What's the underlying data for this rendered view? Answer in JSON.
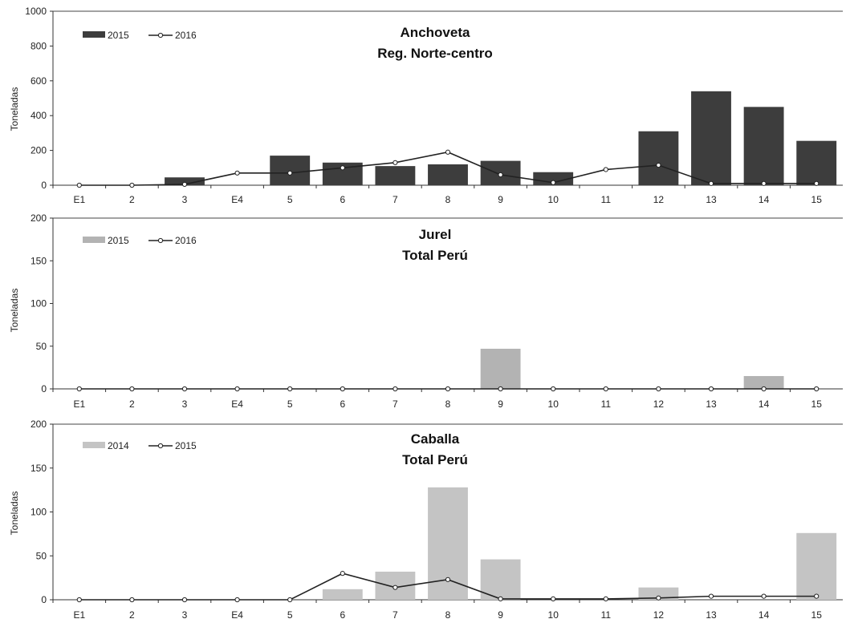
{
  "chart_data": [
    {
      "type": "bar",
      "title": "Anchoveta",
      "subtitle": "Reg. Norte-centro",
      "ylabel": "Toneladas",
      "ylim": [
        0,
        1000
      ],
      "yticks": [
        0,
        200,
        400,
        600,
        800,
        1000
      ],
      "categories": [
        "E1",
        "2",
        "3",
        "E4",
        "5",
        "6",
        "7",
        "8",
        "9",
        "10",
        "11",
        "12",
        "13",
        "14",
        "15"
      ],
      "legend_position": "top-left",
      "series": [
        {
          "name": "2015",
          "kind": "bar",
          "color": "#3d3d3d",
          "values": [
            0,
            0,
            45,
            0,
            170,
            130,
            110,
            120,
            140,
            75,
            0,
            310,
            540,
            450,
            255
          ]
        },
        {
          "name": "2016",
          "kind": "line",
          "color": "#222222",
          "values": [
            0,
            0,
            5,
            70,
            70,
            100,
            130,
            190,
            60,
            15,
            90,
            115,
            10,
            10,
            10
          ]
        }
      ]
    },
    {
      "type": "bar",
      "title": "Jurel",
      "subtitle": "Total Perú",
      "ylabel": "Toneladas",
      "ylim": [
        0,
        200
      ],
      "yticks": [
        0,
        50,
        100,
        150,
        200
      ],
      "categories": [
        "E1",
        "2",
        "3",
        "E4",
        "5",
        "6",
        "7",
        "8",
        "9",
        "10",
        "11",
        "12",
        "13",
        "14",
        "15"
      ],
      "legend_position": "top-left",
      "series": [
        {
          "name": "2015",
          "kind": "bar",
          "color": "#b3b3b3",
          "values": [
            0,
            0,
            0,
            0,
            0,
            0,
            0,
            0,
            47,
            0,
            0,
            0,
            0,
            15,
            0
          ]
        },
        {
          "name": "2016",
          "kind": "line",
          "color": "#222222",
          "values": [
            0,
            0,
            0,
            0,
            0,
            0,
            0,
            0,
            0,
            0,
            0,
            0,
            0,
            0,
            0
          ]
        }
      ]
    },
    {
      "type": "bar",
      "title": "Caballa",
      "subtitle": "Total Perú",
      "ylabel": "Toneladas",
      "ylim": [
        0,
        200
      ],
      "yticks": [
        0,
        50,
        100,
        150,
        200
      ],
      "categories": [
        "E1",
        "2",
        "3",
        "E4",
        "5",
        "6",
        "7",
        "8",
        "9",
        "10",
        "11",
        "12",
        "13",
        "14",
        "15"
      ],
      "legend_position": "top-left",
      "series": [
        {
          "name": "2014",
          "kind": "bar",
          "color": "#c4c4c4",
          "values": [
            0,
            0,
            0,
            0,
            0,
            12,
            32,
            128,
            46,
            0,
            0,
            14,
            0,
            0,
            76
          ]
        },
        {
          "name": "2015",
          "kind": "line",
          "color": "#222222",
          "values": [
            0,
            0,
            0,
            0,
            0,
            30,
            14,
            23,
            1,
            1,
            1,
            2,
            4,
            4,
            4
          ]
        }
      ]
    }
  ]
}
